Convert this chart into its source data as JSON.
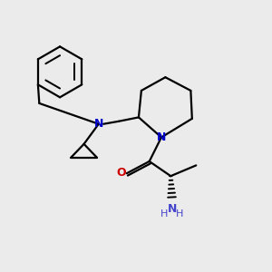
{
  "bg_color": "#ebebeb",
  "bond_color": "#000000",
  "N_color": "#0000cc",
  "O_color": "#cc0000",
  "NH2_color": "#4444cc",
  "line_width": 1.6,
  "figsize": [
    3.0,
    3.0
  ],
  "dpi": 100,
  "xlim": [
    0,
    10
  ],
  "ylim": [
    0,
    10
  ]
}
